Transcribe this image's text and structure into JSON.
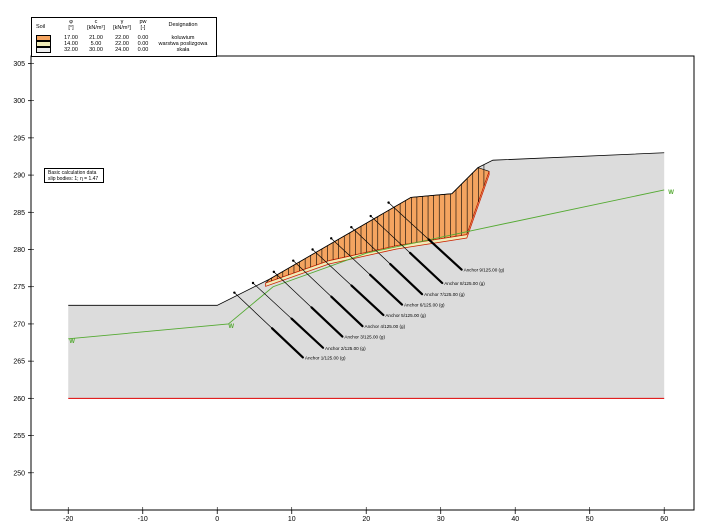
{
  "legend": {
    "headers": {
      "soil": "Soil",
      "phi_sym": "φ",
      "phi_unit": "[°]",
      "c_sym": "c",
      "c_unit": "[kN/m²]",
      "gamma_sym": "γ",
      "gamma_unit": "[kN/m³]",
      "pw_sym": "pw",
      "pw_unit": "[-]",
      "designation": "Designation"
    },
    "rows": [
      {
        "phi": "17.00",
        "c": "21.00",
        "gamma": "22.00",
        "pw": "0.00",
        "name": "koluwium",
        "color": "#f4a460"
      },
      {
        "phi": "14.00",
        "c": "5.00",
        "gamma": "22.00",
        "pw": "0.00",
        "name": "warstwa poslizgowa",
        "color": "#f0ecb8"
      },
      {
        "phi": "32.00",
        "c": "30.00",
        "gamma": "24.00",
        "pw": "0.00",
        "name": "skała",
        "color": "#ededed"
      }
    ]
  },
  "calc_box": {
    "line1": "Basic calculation data",
    "line2": "slip bodies: 1; η = 1.47"
  },
  "colors": {
    "rock": "#dcdcdc",
    "colluvium": "#f4a460",
    "slip_layer": "#f0ecb8",
    "water": "#55aa33",
    "bottom_line": "#dd0000",
    "slip_line": "#cc2200"
  },
  "chart_data": {
    "type": "geotechnical-cross-section",
    "xlim": [
      -25,
      64
    ],
    "ylim": [
      245,
      306
    ],
    "x_ticks": [
      -20,
      -10,
      0,
      10,
      20,
      30,
      40,
      50,
      60
    ],
    "y_ticks": [
      250,
      255,
      260,
      265,
      270,
      275,
      280,
      285,
      290,
      295,
      300,
      305
    ],
    "terrain": [
      [
        -20,
        272.5
      ],
      [
        0,
        272.5
      ],
      [
        7,
        276
      ],
      [
        26,
        287
      ],
      [
        31.5,
        287.5
      ],
      [
        35,
        291
      ],
      [
        37,
        292
      ],
      [
        60,
        293
      ]
    ],
    "slip_surface": [
      [
        6.5,
        275.5
      ],
      [
        15,
        278.5
      ],
      [
        24,
        280.5
      ],
      [
        33.5,
        282
      ],
      [
        36.5,
        290.5
      ]
    ],
    "bottom_boundary": [
      [
        -20,
        260
      ],
      [
        60,
        260
      ]
    ],
    "groundwater": {
      "label": "W",
      "points": [
        [
          -20,
          268
        ],
        [
          1.5,
          270
        ],
        [
          7.5,
          275
        ],
        [
          20,
          279.5
        ],
        [
          34,
          282.5
        ],
        [
          60,
          288
        ]
      ]
    },
    "anchors": [
      {
        "label": "Anchor 1/125.00 (g)",
        "head": [
          2.3,
          274.2
        ],
        "end": [
          11.5,
          265.5
        ]
      },
      {
        "label": "Anchor 2/125.00 (g)",
        "head": [
          4.8,
          275.5
        ],
        "end": [
          14.2,
          266.8
        ]
      },
      {
        "label": "Anchor 3/125.00 (g)",
        "head": [
          7.6,
          277.0
        ],
        "end": [
          16.8,
          268.3
        ]
      },
      {
        "label": "Anchor 4/125.00 (g)",
        "head": [
          10.2,
          278.5
        ],
        "end": [
          19.5,
          269.7
        ]
      },
      {
        "label": "Anchor 5/125.00 (g)",
        "head": [
          12.8,
          280.0
        ],
        "end": [
          22.3,
          271.2
        ]
      },
      {
        "label": "Anchor 6/125.00 (g)",
        "head": [
          15.3,
          281.5
        ],
        "end": [
          24.8,
          272.6
        ]
      },
      {
        "label": "Anchor 7/125.00 (g)",
        "head": [
          18.0,
          283.0
        ],
        "end": [
          27.5,
          274.0
        ]
      },
      {
        "label": "Anchor 8/125.00 (g)",
        "head": [
          20.6,
          284.5
        ],
        "end": [
          30.2,
          275.5
        ]
      },
      {
        "label": "Anchor 9/125.00 (g)",
        "head": [
          23.0,
          286.3
        ],
        "end": [
          32.8,
          277.3
        ]
      }
    ]
  }
}
